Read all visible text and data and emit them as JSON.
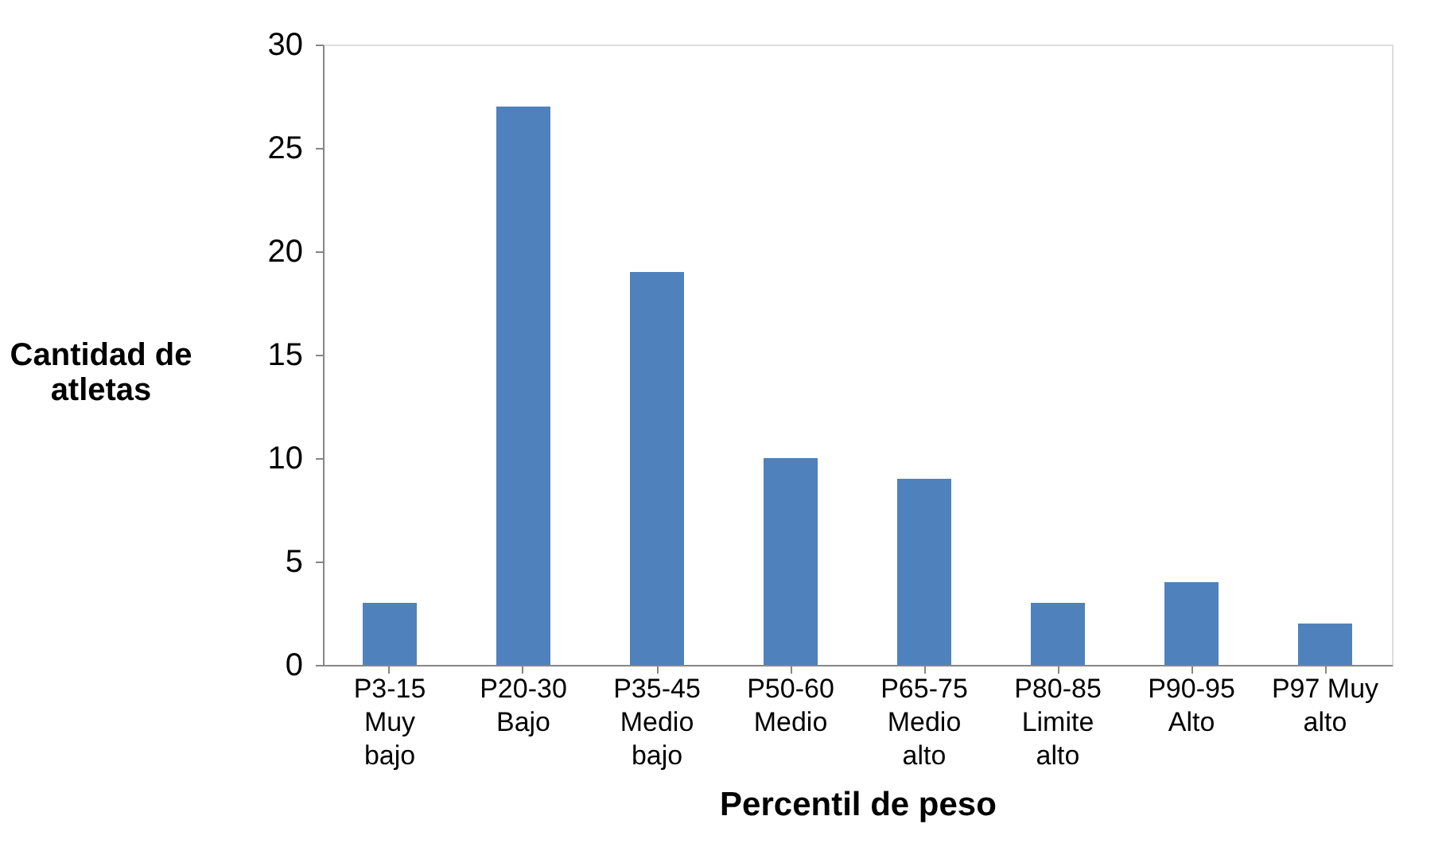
{
  "chart_data": {
    "type": "bar",
    "xlabel": "Percentil de peso",
    "ylabel": "Cantidad de\natletas",
    "categories": [
      "P3-15\nMuy\nbajo",
      "P20-30\nBajo",
      "P35-45\nMedio\nbajo",
      "P50-60\nMedio",
      "P65-75\nMedio\nalto",
      "P80-85\nLimite\nalto",
      "P90-95\nAlto",
      "P97 Muy\nalto"
    ],
    "values": [
      3,
      27,
      19,
      10,
      9,
      3,
      4,
      2
    ],
    "color": "#4f81bd",
    "ylim": [
      0,
      30
    ],
    "yticks": [
      0,
      5,
      10,
      15,
      20,
      25,
      30
    ],
    "grid": false
  }
}
